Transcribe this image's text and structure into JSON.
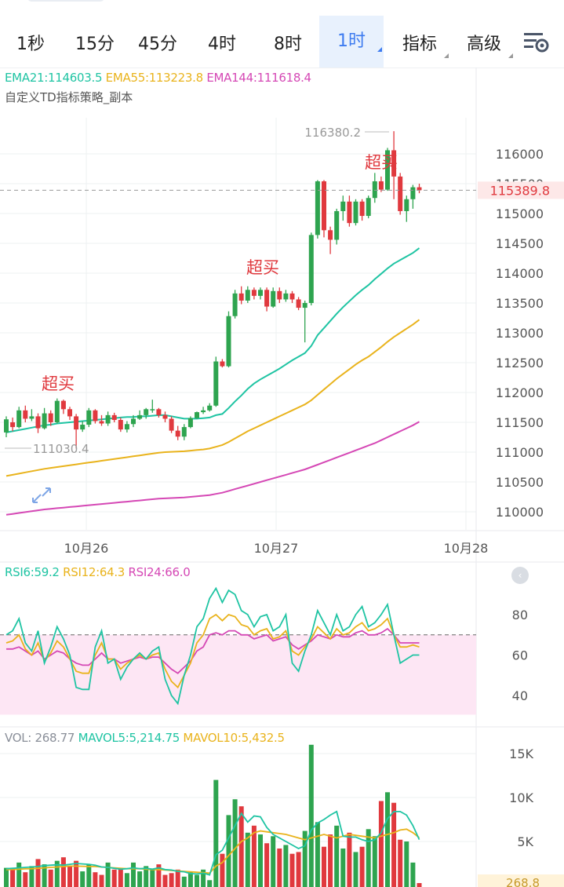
{
  "tabs": [
    {
      "label": "1秒",
      "active": false,
      "dropdown": false
    },
    {
      "label": "15分",
      "active": false,
      "dropdown": false
    },
    {
      "label": "45分",
      "active": false,
      "dropdown": false
    },
    {
      "label": "4时",
      "active": false,
      "dropdown": false
    },
    {
      "label": "8时",
      "active": false,
      "dropdown": false
    },
    {
      "label": "1时",
      "active": true,
      "dropdown": true
    },
    {
      "label": "指标",
      "active": false,
      "dropdown": true
    },
    {
      "label": "高级",
      "active": false,
      "dropdown": true
    }
  ],
  "settings_icon": "chart-settings-icon",
  "legend": {
    "ema21": "EMA21:114603.5",
    "ema55": "EMA55:113223.8",
    "ema144": "EMA144:111618.4",
    "strategy": "自定义TD指标策略_副本"
  },
  "rsi_legend": {
    "rsi6": "RSI6:59.2",
    "rsi12": "RSI12:64.3",
    "rsi24": "RSI24:66.0"
  },
  "vol_legend": {
    "vol": "VOL: 268.77",
    "mavol5": "MAVOL5:5,214.75",
    "mavol10": "MAVOL10:5,432.5"
  },
  "collapse_icon": "collapse-left-icon",
  "expand_icon": "expand-arrows-icon",
  "colors": {
    "up": "#2ea44f",
    "down": "#e0393e",
    "ema21": "#1fc4a3",
    "ema55": "#e9b31c",
    "ema144": "#d548b5",
    "accent": "#3d7bf0"
  },
  "chart_data": [
    {
      "type": "candlestick",
      "title": "",
      "y_ticks": [
        116000,
        115500,
        115000,
        114500,
        114000,
        113500,
        113000,
        112500,
        112000,
        111500,
        111000,
        110500,
        110000
      ],
      "ylim": [
        109800,
        116650
      ],
      "x_ticks": [
        "10月26",
        "10月27",
        "10月28"
      ],
      "last_price": "115389.8",
      "high_label": "116380.2",
      "low_label": "111030.4",
      "annotations": [
        "超买",
        "超买",
        "超买"
      ],
      "candles": [
        [
          111330,
          111550,
          111250,
          111600
        ],
        [
          111500,
          111420,
          111350,
          111580
        ],
        [
          111420,
          111700,
          111400,
          111760
        ],
        [
          111700,
          111560,
          111500,
          111780
        ],
        [
          111560,
          111600,
          111520,
          111720
        ],
        [
          111600,
          111400,
          111320,
          111650
        ],
        [
          111400,
          111650,
          111380,
          111740
        ],
        [
          111650,
          111500,
          111440,
          111700
        ],
        [
          111500,
          111860,
          111480,
          111900
        ],
        [
          111860,
          111720,
          111640,
          111880
        ],
        [
          111720,
          111600,
          111540,
          111760
        ],
        [
          111600,
          111380,
          111060,
          111640
        ],
        [
          111380,
          111460,
          111340,
          111520
        ],
        [
          111460,
          111700,
          111420,
          111740
        ],
        [
          111700,
          111520,
          111480,
          111720
        ],
        [
          111520,
          111480,
          111440,
          111620
        ],
        [
          111480,
          111620,
          111440,
          111680
        ],
        [
          111620,
          111540,
          111500,
          111660
        ],
        [
          111540,
          111380,
          111340,
          111580
        ],
        [
          111380,
          111470,
          111330,
          111520
        ],
        [
          111470,
          111560,
          111420,
          111620
        ],
        [
          111560,
          111620,
          111540,
          111700
        ],
        [
          111620,
          111720,
          111560,
          111740
        ],
        [
          111720,
          111720,
          111660,
          111880
        ],
        [
          111720,
          111620,
          111580,
          111740
        ],
        [
          111620,
          111560,
          111500,
          111680
        ],
        [
          111560,
          111360,
          111320,
          111600
        ],
        [
          111360,
          111260,
          111200,
          111440
        ],
        [
          111260,
          111420,
          111200,
          111470
        ],
        [
          111420,
          111570,
          111400,
          111600
        ],
        [
          111570,
          111670,
          111560,
          111680
        ],
        [
          111670,
          111700,
          111640,
          111760
        ],
        [
          111700,
          111780,
          111680,
          111820
        ],
        [
          111780,
          112520,
          111760,
          112600
        ],
        [
          112520,
          112440,
          112420,
          112560
        ],
        [
          112440,
          113280,
          112420,
          113360
        ],
        [
          113280,
          113660,
          113240,
          113720
        ],
        [
          113660,
          113540,
          113480,
          113780
        ],
        [
          113540,
          113720,
          113500,
          113780
        ],
        [
          113720,
          113620,
          113560,
          113760
        ],
        [
          113620,
          113720,
          113560,
          113760
        ],
        [
          113720,
          113440,
          113360,
          113760
        ],
        [
          113440,
          113700,
          113420,
          113760
        ],
        [
          113700,
          113560,
          113500,
          113760
        ],
        [
          113560,
          113660,
          113520,
          113720
        ],
        [
          113660,
          113560,
          113500,
          113700
        ],
        [
          113560,
          113420,
          113380,
          113600
        ],
        [
          113420,
          113500,
          112840,
          113540
        ],
        [
          113500,
          114640,
          113460,
          114680
        ],
        [
          114640,
          115540,
          114580,
          115560
        ],
        [
          115540,
          114720,
          114600,
          115560
        ],
        [
          114720,
          114560,
          114320,
          114780
        ],
        [
          114560,
          115040,
          114480,
          115080
        ],
        [
          115040,
          115200,
          114880,
          115300
        ],
        [
          115200,
          114840,
          114780,
          115300
        ],
        [
          114840,
          115200,
          114800,
          115240
        ],
        [
          115200,
          114960,
          114880,
          115240
        ],
        [
          114960,
          115260,
          114920,
          115300
        ],
        [
          115260,
          115540,
          115180,
          115680
        ],
        [
          115540,
          115400,
          115360,
          115620
        ],
        [
          115400,
          116060,
          115380,
          116100
        ],
        [
          116060,
          115620,
          115240,
          116380
        ],
        [
          115620,
          115040,
          114980,
          115680
        ],
        [
          115040,
          115240,
          114860,
          115300
        ],
        [
          115240,
          115440,
          115080,
          115480
        ],
        [
          115440,
          115390,
          115340,
          115500
        ]
      ],
      "ema21": [
        111330,
        111350,
        111370,
        111390,
        111410,
        111430,
        111450,
        111460,
        111480,
        111490,
        111500,
        111510,
        111520,
        111530,
        111540,
        111550,
        111560,
        111570,
        111580,
        111590,
        111590,
        111600,
        111600,
        111610,
        111620,
        111620,
        111600,
        111580,
        111560,
        111560,
        111560,
        111570,
        111580,
        111620,
        111640,
        111740,
        111850,
        111950,
        112060,
        112150,
        112220,
        112280,
        112340,
        112400,
        112470,
        112540,
        112600,
        112660,
        112780,
        112960,
        113080,
        113200,
        113320,
        113430,
        113530,
        113630,
        113720,
        113800,
        113900,
        113990,
        114080,
        114160,
        114220,
        114280,
        114340,
        114420
      ],
      "ema55": [
        110600,
        110620,
        110640,
        110660,
        110680,
        110700,
        110720,
        110735,
        110750,
        110765,
        110780,
        110795,
        110810,
        110825,
        110840,
        110855,
        110870,
        110885,
        110900,
        110915,
        110930,
        110945,
        110960,
        110975,
        110990,
        111000,
        111005,
        111010,
        111015,
        111025,
        111035,
        111045,
        111060,
        111090,
        111120,
        111170,
        111230,
        111290,
        111350,
        111400,
        111450,
        111500,
        111550,
        111600,
        111650,
        111700,
        111750,
        111800,
        111870,
        111960,
        112050,
        112140,
        112230,
        112310,
        112390,
        112470,
        112540,
        112600,
        112680,
        112760,
        112850,
        112930,
        113000,
        113070,
        113140,
        113220
      ],
      "ema144": [
        109950,
        109965,
        109980,
        109995,
        110010,
        110025,
        110040,
        110050,
        110060,
        110070,
        110080,
        110090,
        110100,
        110110,
        110120,
        110130,
        110140,
        110150,
        110160,
        110170,
        110180,
        110190,
        110200,
        110210,
        110220,
        110225,
        110230,
        110235,
        110240,
        110250,
        110260,
        110270,
        110280,
        110300,
        110320,
        110350,
        110380,
        110410,
        110440,
        110470,
        110500,
        110530,
        110560,
        110590,
        110620,
        110650,
        110680,
        110710,
        110750,
        110790,
        110830,
        110870,
        110910,
        110950,
        110990,
        111030,
        111070,
        111110,
        111150,
        111200,
        111250,
        111300,
        111350,
        111400,
        111450,
        111510
      ]
    },
    {
      "type": "line",
      "title": "RSI",
      "y_ticks": [
        80,
        60,
        40
      ],
      "ylim": [
        30,
        93
      ],
      "overbought": 70,
      "series": [
        {
          "name": "RSI6",
          "values": [
            70,
            72,
            78,
            66,
            62,
            72,
            56,
            64,
            74,
            68,
            60,
            44,
            43,
            43,
            64,
            72,
            56,
            58,
            48,
            54,
            58,
            61,
            58,
            62,
            64,
            48,
            40,
            36,
            50,
            60,
            74,
            78,
            88,
            93,
            86,
            92,
            90,
            82,
            80,
            74,
            79,
            80,
            72,
            74,
            80,
            56,
            52,
            62,
            70,
            82,
            76,
            70,
            80,
            72,
            74,
            80,
            84,
            74,
            76,
            80,
            85,
            70,
            56,
            58,
            60,
            60
          ]
        },
        {
          "name": "RSI12",
          "values": [
            66,
            67,
            70,
            63,
            60,
            66,
            57,
            61,
            67,
            64,
            58,
            52,
            51,
            51,
            60,
            66,
            58,
            58,
            53,
            56,
            58,
            60,
            58,
            60,
            61,
            53,
            47,
            44,
            50,
            56,
            66,
            70,
            78,
            80,
            77,
            80,
            79,
            75,
            74,
            70,
            72,
            73,
            68,
            69,
            72,
            62,
            60,
            64,
            68,
            74,
            71,
            68,
            73,
            70,
            71,
            74,
            76,
            72,
            73,
            75,
            78,
            70,
            64,
            64,
            65,
            64
          ]
        },
        {
          "name": "RSI24",
          "values": [
            63,
            63,
            64,
            62,
            60,
            62,
            58,
            60,
            62,
            61,
            58,
            56,
            55,
            55,
            58,
            61,
            58,
            58,
            56,
            57,
            58,
            59,
            58,
            59,
            59,
            56,
            53,
            51,
            54,
            57,
            62,
            64,
            70,
            71,
            70,
            72,
            72,
            70,
            70,
            68,
            69,
            70,
            67,
            68,
            69,
            65,
            63,
            65,
            67,
            70,
            69,
            68,
            70,
            69,
            69,
            71,
            72,
            70,
            70,
            71,
            73,
            70,
            66,
            66,
            66,
            66
          ]
        }
      ]
    },
    {
      "type": "bar",
      "title": "VOL",
      "y_ticks": [
        "15K",
        "10K",
        "5K"
      ],
      "ylim": [
        0,
        16200
      ],
      "last_value": "268.8",
      "volumes": [
        2000,
        1800,
        2600,
        1500,
        2200,
        3000,
        2400,
        1800,
        2800,
        3200,
        2200,
        2800,
        1600,
        2400,
        1500,
        1200,
        2600,
        1800,
        2000,
        1400,
        2600,
        1600,
        2200,
        1800,
        2400,
        1200,
        1400,
        1800,
        1000,
        1500,
        1200,
        1800,
        600,
        12000,
        3600,
        8000,
        9800,
        9000,
        6000,
        6800,
        5800,
        4800,
        5600,
        4200,
        4600,
        3600,
        3800,
        6200,
        16000,
        7200,
        4400,
        5800,
        6800,
        4200,
        6000,
        3800,
        4400,
        6400,
        5600,
        9600,
        10600,
        9400,
        5200,
        5000,
        2600,
        268.77
      ],
      "mavol5": [
        1900,
        1950,
        2000,
        2050,
        2100,
        2150,
        2250,
        2300,
        2350,
        2300,
        2400,
        2500,
        2450,
        2400,
        2300,
        2100,
        2050,
        1950,
        1850,
        1900,
        2000,
        1900,
        1950,
        1850,
        2000,
        1800,
        1750,
        1600,
        1550,
        1350,
        1300,
        1400,
        1200,
        3500,
        4000,
        5400,
        6800,
        8200,
        7200,
        7900,
        7800,
        6600,
        5800,
        5400,
        5000,
        4600,
        4200,
        4500,
        6300,
        7100,
        7500,
        8000,
        8400,
        5600,
        5500,
        5500,
        5200,
        5000,
        5200,
        6000,
        7600,
        8400,
        8400,
        8000,
        6800,
        5214.75
      ],
      "mavol10": [
        1800,
        1820,
        1850,
        1880,
        1900,
        1950,
        2000,
        2050,
        2100,
        2150,
        2200,
        2200,
        2180,
        2150,
        2150,
        2100,
        2050,
        2000,
        1950,
        1900,
        1900,
        1900,
        1850,
        1800,
        1800,
        1750,
        1700,
        1650,
        1600,
        1550,
        1500,
        1450,
        1400,
        2200,
        2600,
        3400,
        4200,
        5000,
        5400,
        6000,
        6200,
        6100,
        6000,
        5900,
        5800,
        5600,
        5400,
        5200,
        5400,
        5600,
        5800,
        5600,
        5400,
        5600,
        5800,
        5700,
        5600,
        5500,
        5400,
        5600,
        5800,
        6000,
        6300,
        6400,
        6000,
        5432.5
      ]
    }
  ]
}
